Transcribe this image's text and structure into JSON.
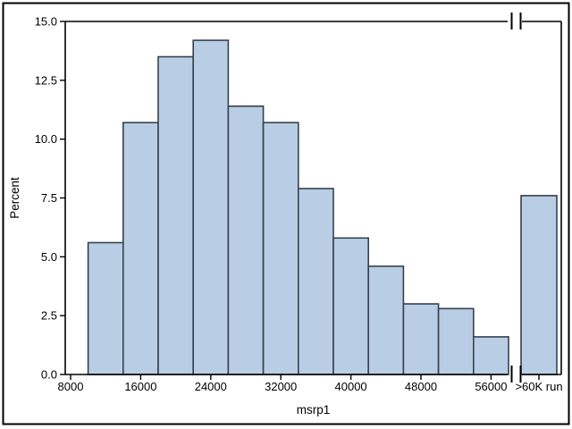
{
  "figure": {
    "background": "#ffffff",
    "border_color": "#000000"
  },
  "chart_data": {
    "type": "bar",
    "subtype": "histogram",
    "title": "",
    "xlabel": "msrp1",
    "ylabel": "Percent",
    "grid": false,
    "legend": null,
    "ylim": [
      0,
      15
    ],
    "y_tick_values": [
      0,
      2.5,
      5,
      7.5,
      10,
      12.5,
      15
    ],
    "y_tick_labels": [
      "0.0",
      "2.5",
      "5.0",
      "7.5",
      "10.0",
      "12.5",
      "15.0"
    ],
    "x_tick_values": [
      8000,
      16000,
      24000,
      32000,
      40000,
      48000,
      56000
    ],
    "x_tick_labels": [
      "8000",
      "16000",
      "24000",
      "32000",
      "40000",
      "48000",
      "56000"
    ],
    "bin_width": 4000,
    "bins": [
      {
        "range": [
          10000,
          14000
        ],
        "percent": 5.6
      },
      {
        "range": [
          14000,
          18000
        ],
        "percent": 10.7
      },
      {
        "range": [
          18000,
          22000
        ],
        "percent": 13.5
      },
      {
        "range": [
          22000,
          26000
        ],
        "percent": 14.2
      },
      {
        "range": [
          26000,
          30000
        ],
        "percent": 11.4
      },
      {
        "range": [
          30000,
          34000
        ],
        "percent": 10.7
      },
      {
        "range": [
          34000,
          38000
        ],
        "percent": 7.9
      },
      {
        "range": [
          38000,
          42000
        ],
        "percent": 5.8
      },
      {
        "range": [
          42000,
          46000
        ],
        "percent": 4.6
      },
      {
        "range": [
          46000,
          50000
        ],
        "percent": 3.0
      },
      {
        "range": [
          50000,
          54000
        ],
        "percent": 2.8
      },
      {
        "range": [
          54000,
          58000
        ],
        "percent": 1.6
      }
    ],
    "overflow_bar": {
      "label": ">60K run",
      "percent": 7.6
    },
    "axis_break": true,
    "colors": {
      "bar_fill": "#b9cee5",
      "bar_stroke": "#36414c",
      "axis": "#000000",
      "text": "#000000"
    }
  }
}
